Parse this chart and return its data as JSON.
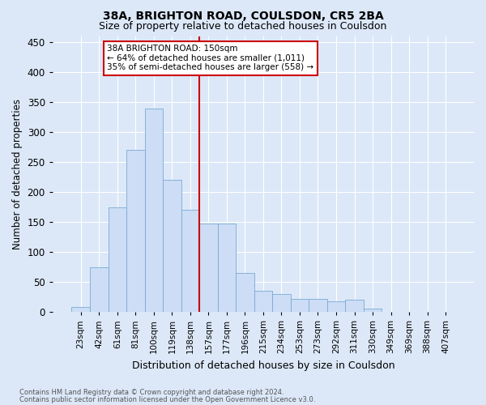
{
  "title1": "38A, BRIGHTON ROAD, COULSDON, CR5 2BA",
  "title2": "Size of property relative to detached houses in Coulsdon",
  "xlabel": "Distribution of detached houses by size in Coulsdon",
  "ylabel": "Number of detached properties",
  "categories": [
    "23sqm",
    "42sqm",
    "61sqm",
    "81sqm",
    "100sqm",
    "119sqm",
    "138sqm",
    "157sqm",
    "177sqm",
    "196sqm",
    "215sqm",
    "234sqm",
    "253sqm",
    "273sqm",
    "292sqm",
    "311sqm",
    "330sqm",
    "349sqm",
    "369sqm",
    "388sqm",
    "407sqm"
  ],
  "values": [
    8,
    75,
    175,
    270,
    340,
    220,
    170,
    148,
    147,
    65,
    35,
    30,
    22,
    22,
    18,
    20,
    5,
    0,
    0,
    0,
    0
  ],
  "bar_color": "#ccddf5",
  "bar_edge_color": "#7aaad4",
  "vline_color": "#cc0000",
  "annotation_title": "38A BRIGHTON ROAD: 150sqm",
  "annotation_line1": "← 64% of detached houses are smaller (1,011)",
  "annotation_line2": "35% of semi-detached houses are larger (558) →",
  "annotation_box_color": "#ffffff",
  "annotation_box_edge": "#cc0000",
  "ylim": [
    0,
    460
  ],
  "yticks": [
    0,
    50,
    100,
    150,
    200,
    250,
    300,
    350,
    400,
    450
  ],
  "footer1": "Contains HM Land Registry data © Crown copyright and database right 2024.",
  "footer2": "Contains public sector information licensed under the Open Government Licence v3.0.",
  "background_color": "#dce8f8",
  "plot_background": "#dce8f8",
  "title_fontsize": 10,
  "subtitle_fontsize": 9
}
